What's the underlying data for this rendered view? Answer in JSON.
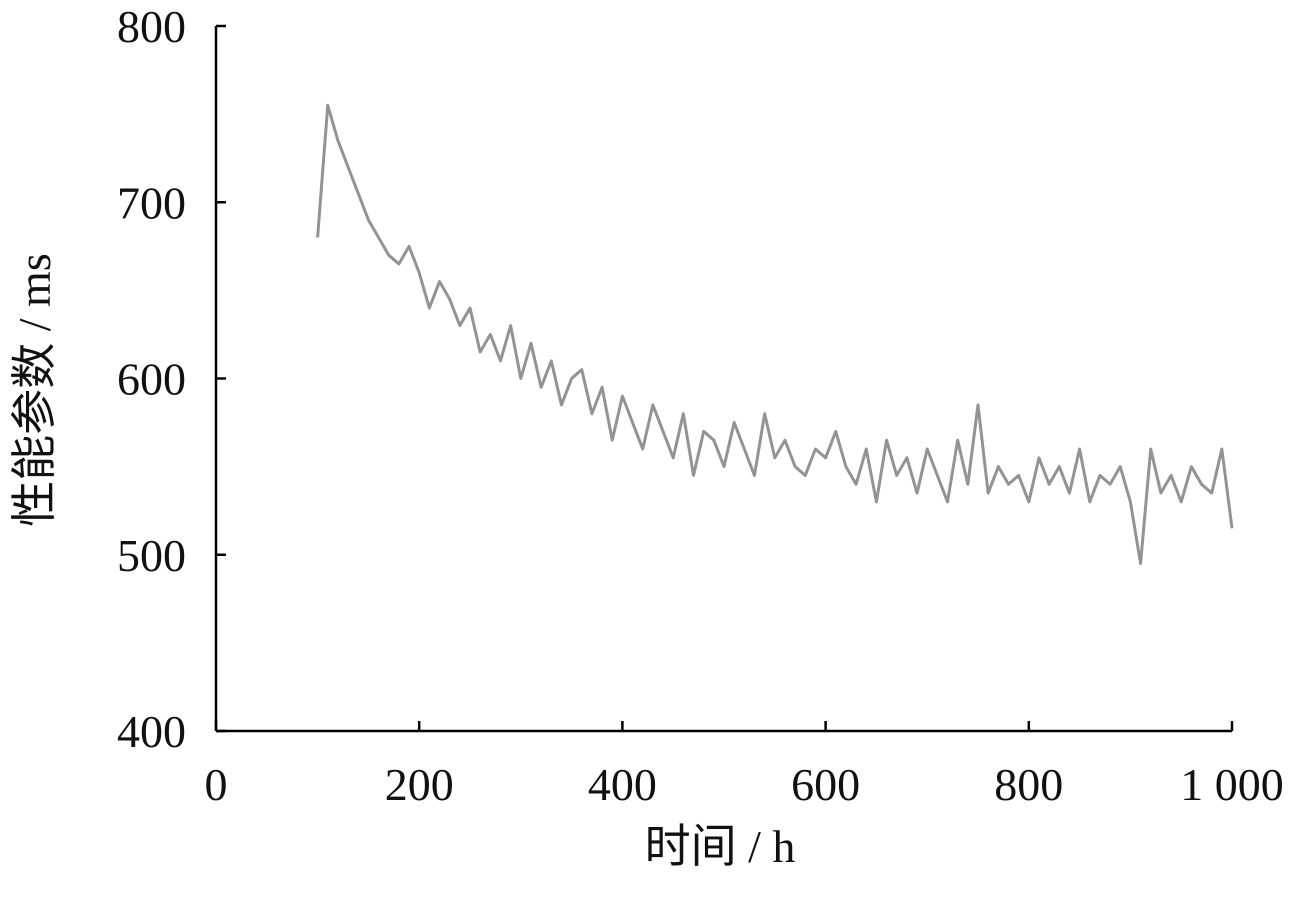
{
  "chart_data": {
    "type": "line",
    "x_label": "时间 / h",
    "y_label": "性能参数 / ms",
    "xlim": [
      0,
      1000
    ],
    "ylim": [
      400,
      800
    ],
    "xticks": [
      0,
      200,
      400,
      600,
      800,
      {
        "value": 1000,
        "label": "1 000"
      }
    ],
    "yticks": [
      400,
      500,
      600,
      700,
      800
    ],
    "grid": false,
    "x": [
      100,
      110,
      120,
      130,
      140,
      150,
      160,
      170,
      180,
      190,
      200,
      210,
      220,
      230,
      240,
      250,
      260,
      270,
      280,
      290,
      300,
      310,
      320,
      330,
      340,
      350,
      360,
      370,
      380,
      390,
      400,
      410,
      420,
      430,
      440,
      450,
      460,
      470,
      480,
      490,
      500,
      510,
      520,
      530,
      540,
      550,
      560,
      570,
      580,
      590,
      600,
      610,
      620,
      630,
      640,
      650,
      660,
      670,
      680,
      690,
      700,
      710,
      720,
      730,
      740,
      750,
      760,
      770,
      780,
      790,
      800,
      810,
      820,
      830,
      840,
      850,
      860,
      870,
      880,
      890,
      900,
      910,
      920,
      930,
      940,
      950,
      960,
      970,
      980,
      990,
      1000
    ],
    "series": [
      {
        "color": "#939393",
        "values": [
          680,
          755,
          735,
          720,
          705,
          690,
          680,
          670,
          665,
          675,
          660,
          640,
          655,
          645,
          630,
          640,
          615,
          625,
          610,
          630,
          600,
          620,
          595,
          610,
          585,
          600,
          605,
          580,
          595,
          565,
          590,
          575,
          560,
          585,
          570,
          555,
          580,
          545,
          570,
          565,
          550,
          575,
          560,
          545,
          580,
          555,
          565,
          550,
          545,
          560,
          555,
          570,
          550,
          540,
          560,
          530,
          565,
          545,
          555,
          535,
          560,
          545,
          530,
          565,
          540,
          585,
          535,
          550,
          540,
          545,
          530,
          555,
          540,
          550,
          535,
          560,
          530,
          545,
          540,
          550,
          530,
          495,
          560,
          535,
          545,
          530,
          550,
          540,
          535,
          560,
          515
        ]
      }
    ]
  }
}
